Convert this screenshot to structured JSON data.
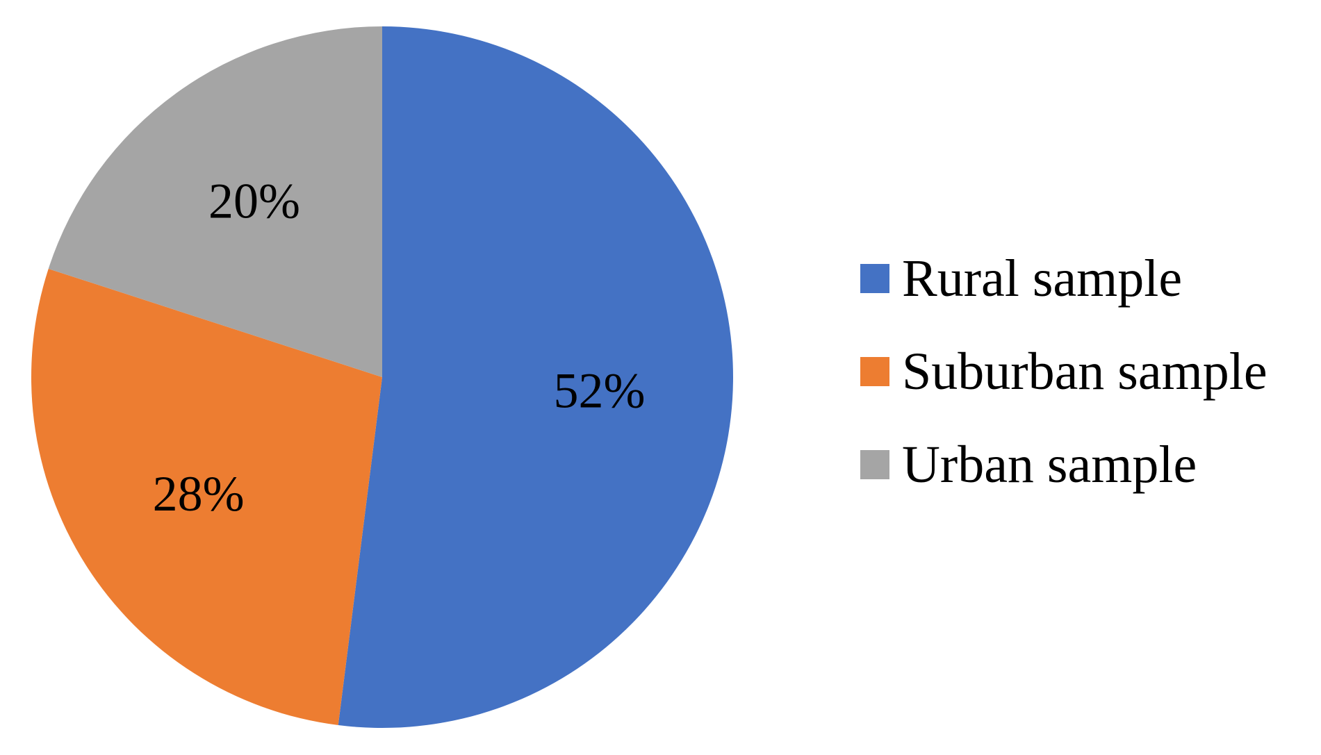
{
  "chart_data": {
    "type": "pie",
    "title": "",
    "slices": [
      {
        "name": "Rural sample",
        "value": 52,
        "label": "52%",
        "color": "#4472C4"
      },
      {
        "name": "Suburban sample",
        "value": 28,
        "label": "28%",
        "color": "#ED7D31"
      },
      {
        "name": "Urban sample",
        "value": 20,
        "label": "20%",
        "color": "#A5A5A5"
      }
    ],
    "legend_placement": "right",
    "start_angle": "12 o'clock",
    "direction": "clockwise"
  }
}
